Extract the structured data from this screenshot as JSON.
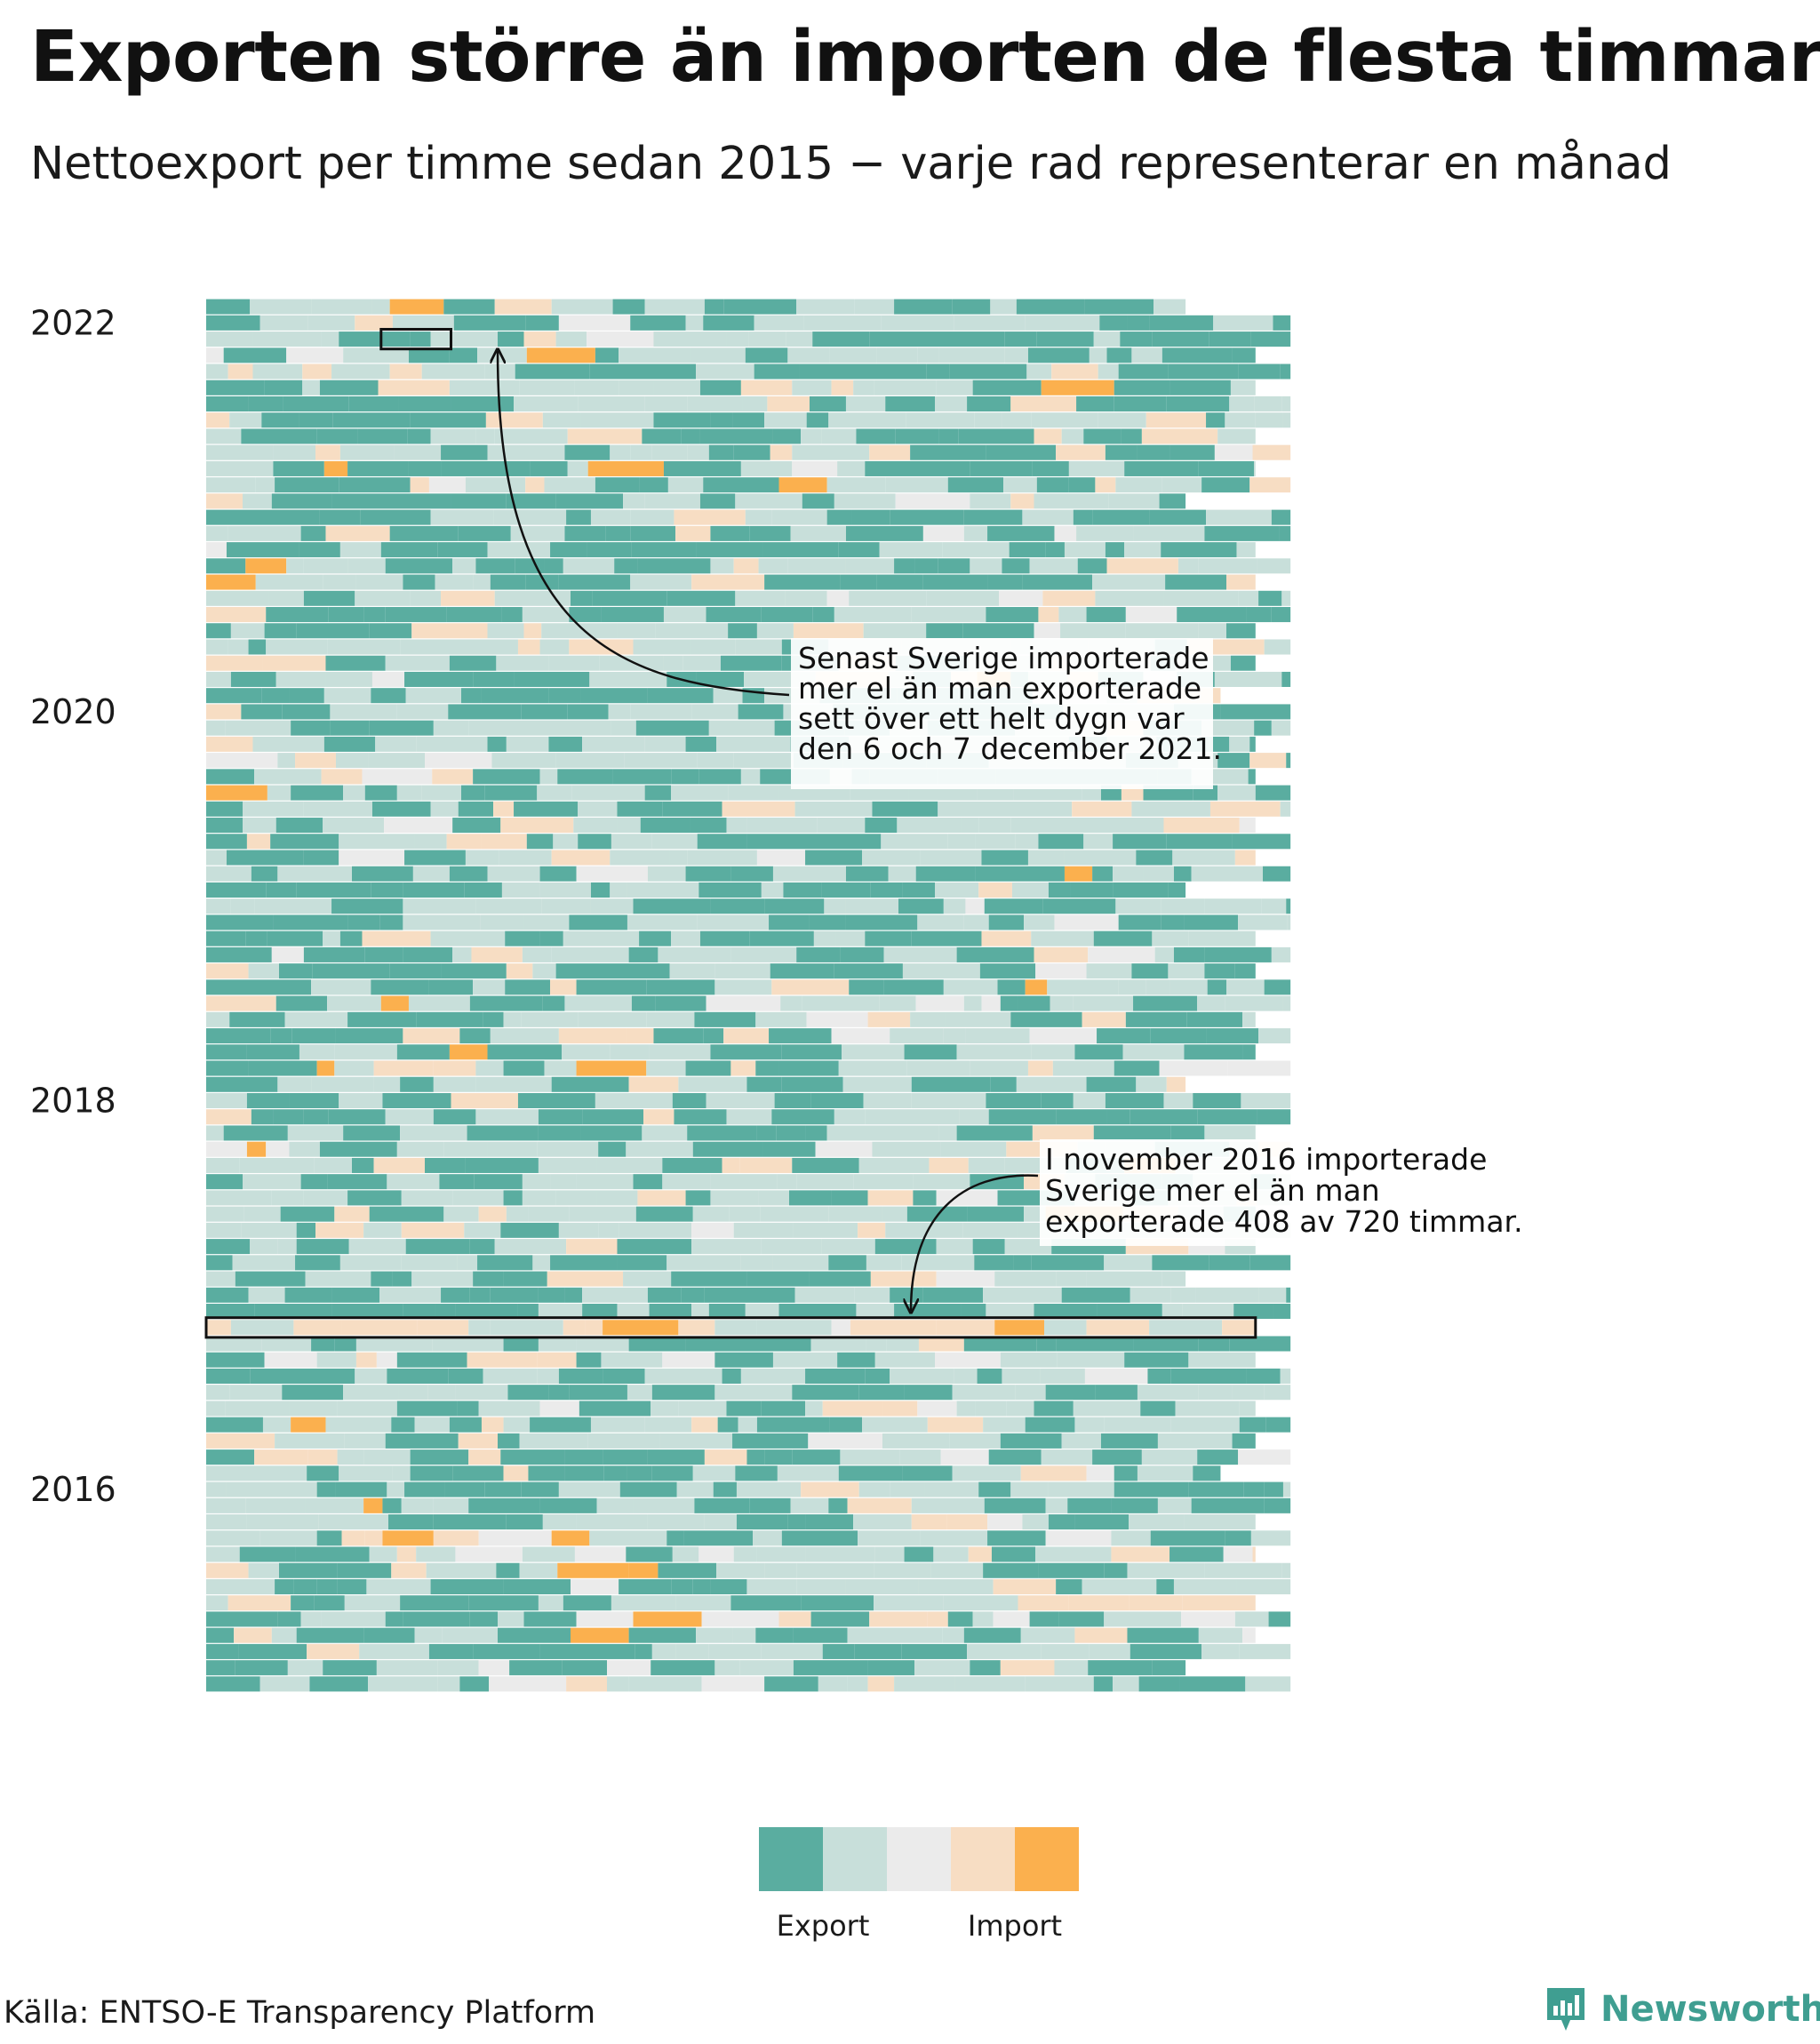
{
  "header": {
    "title": "Exporten större än importen de flesta timmar",
    "subtitle": "Nettoexport per timme sedan 2015 − varje rad representerar en månad"
  },
  "chart_data": {
    "type": "heatmap",
    "title": "Exporten större än importen de flesta timmar",
    "subtitle": "Nettoexport per timme sedan 2015 − varje rad representerar en månad",
    "x": "timme i månaden",
    "y": "månad",
    "xlabel": "",
    "ylabel": "",
    "y_start": "2015-01",
    "y_end": "2022-02",
    "y_tick_labels": [
      "2016",
      "2018",
      "2020",
      "2022"
    ],
    "y_ticks": [
      "2016-01",
      "2018-01",
      "2020-01",
      "2022-01"
    ],
    "grid": false,
    "color_scale": {
      "colors": [
        "#5aada0",
        "#c8dfda",
        "#ebebeb",
        "#f7ddc3",
        "#fbb04e"
      ],
      "legend_labels": [
        "Export",
        "Import"
      ],
      "legend_position": "bottom-center"
    },
    "annotations": [
      {
        "month": "2021-12",
        "hours": [
          120,
          168
        ],
        "text": [
          "Senast Sverige importerade",
          "mer el än man exporterade",
          "sett över ett helt dygn var",
          "den 6 och 7 december 2021."
        ]
      },
      {
        "month": "2016-11",
        "hours": [
          0,
          720
        ],
        "text": [
          "I november 2016 importerade",
          "Sverige mer el än man",
          "exporterade 408 av 720 timmar."
        ]
      }
    ]
  },
  "footer": {
    "source": "Källa: ENTSO-E Transparency Platform",
    "brand": "Newsworthy",
    "brand_icon": "bar-chart-icon",
    "brand_color": "#3f9e91"
  }
}
